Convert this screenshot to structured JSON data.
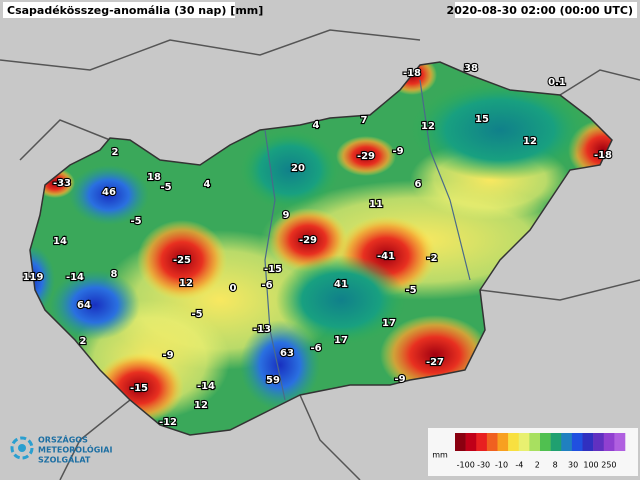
{
  "header": {
    "title": "Csapadékösszeg-anomália (30 nap) [mm]",
    "date": "2020-08-30 02:00 (00:00 UTC)"
  },
  "stations": [
    -18,
    38,
    0.1,
    4,
    7,
    12,
    15,
    12,
    -18,
    2,
    -29,
    -9,
    20,
    -33,
    18,
    -5,
    4,
    46,
    6,
    11,
    9,
    -5,
    14,
    -29,
    -41,
    -2,
    -25,
    8,
    -14,
    119,
    -15,
    12,
    0,
    -6,
    41,
    -5,
    64,
    -5,
    2,
    -13,
    17,
    -6,
    17,
    63,
    -9,
    -27,
    -9,
    -15,
    -14,
    59,
    12,
    -12
  ],
  "legend": {
    "unit": "mm",
    "ticks": [
      -100,
      -30,
      -10,
      -4,
      2,
      8,
      30,
      100,
      250
    ]
  },
  "logo": [
    "ORSZÁGOS",
    "METEOROLÓGIAI",
    "SZOLGÁLAT"
  ]
}
